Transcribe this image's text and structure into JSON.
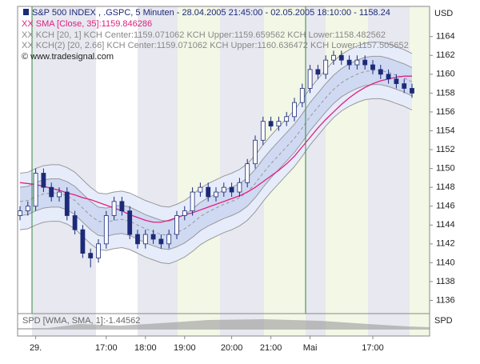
{
  "chart_data": {
    "type": "candlestick",
    "title": "S&P 500 INDEX , .GSPC, 5 Minuten - 28.04.2005 21:45:00 - 02.05.2005 18:10:00 - 1158.24",
    "copyright": "© www.tradesignal.com",
    "y_unit": "USD",
    "categories": [
      null,
      null,
      "29.",
      null,
      null,
      null,
      null,
      null,
      null,
      null,
      null,
      "17:00",
      null,
      null,
      null,
      null,
      "18:00",
      null,
      null,
      null,
      null,
      "19:00",
      null,
      null,
      null,
      null,
      null,
      "20:00",
      null,
      null,
      null,
      null,
      "21:00",
      null,
      null,
      null,
      null,
      "Mai",
      null,
      null,
      null,
      null,
      null,
      null,
      null,
      "17:00",
      null,
      null,
      null,
      null,
      null
    ],
    "open": [
      1145,
      1145.5,
      1146,
      1149.5,
      1148,
      1147,
      1147.5,
      1145,
      1143.5,
      1141,
      1140.5,
      1142,
      1145,
      1146.5,
      1145.5,
      1143,
      1142,
      1143,
      1142.5,
      1142,
      1143,
      1145,
      1145.5,
      1147.5,
      1148,
      1147,
      1147.5,
      1148,
      1147.5,
      1148.5,
      1150.5,
      1153,
      1155,
      1154.5,
      1155,
      1155.5,
      1157,
      1158.5,
      1160.5,
      1160,
      1161.5,
      1162,
      1161.5,
      1161,
      1161.5,
      1161,
      1160.5,
      1160,
      1159.5,
      1159,
      1158.5
    ],
    "high": [
      1146,
      1146.5,
      1150,
      1150,
      1148.5,
      1148,
      1148,
      1145.5,
      1144,
      1141.5,
      1142.5,
      1145.5,
      1147,
      1147,
      1146,
      1143.5,
      1143.5,
      1143.5,
      1143,
      1143.5,
      1145.5,
      1146,
      1148,
      1148.5,
      1148.5,
      1148,
      1148.5,
      1148.5,
      1149,
      1151,
      1153.5,
      1155.5,
      1155.5,
      1155.5,
      1156,
      1157.5,
      1159,
      1161,
      1161,
      1162,
      1162.5,
      1162.5,
      1162,
      1162,
      1162,
      1161.5,
      1161,
      1160.5,
      1160,
      1159.5,
      1159
    ],
    "low": [
      1144.5,
      1145,
      1145.5,
      1147.5,
      1146.5,
      1146.5,
      1144.5,
      1143,
      1140.5,
      1139.5,
      1140,
      1141.5,
      1144.5,
      1145,
      1142.5,
      1141.5,
      1141.5,
      1142,
      1141.5,
      1141.5,
      1142.5,
      1144.5,
      1145,
      1147,
      1146.5,
      1146.5,
      1147,
      1147,
      1147,
      1148,
      1150,
      1152.5,
      1154,
      1154,
      1154.5,
      1155,
      1156.5,
      1158,
      1159.5,
      1159.5,
      1161,
      1161,
      1160.5,
      1160.5,
      1160.5,
      1160,
      1159.5,
      1159,
      1158.5,
      1158,
      1157.5
    ],
    "close": [
      1145.5,
      1146,
      1149.5,
      1148,
      1147,
      1147.5,
      1145,
      1143.5,
      1141,
      1140.5,
      1142,
      1145,
      1146.5,
      1145.5,
      1143,
      1142,
      1143,
      1142.5,
      1142,
      1143,
      1145,
      1145.5,
      1147.5,
      1148,
      1147,
      1147.5,
      1148,
      1147.5,
      1148.5,
      1150.5,
      1153,
      1155,
      1154.5,
      1155,
      1155.5,
      1157,
      1158.5,
      1160.5,
      1160,
      1161.5,
      1162,
      1161.5,
      1161,
      1161.5,
      1161,
      1160.5,
      1160,
      1159.5,
      1159,
      1158.5,
      1158
    ],
    "up_color": "#ffffff",
    "down_color": "#1c2a78",
    "sma": {
      "name": "XX SMA [Close, 35]:1159.846286",
      "color": "#e0207f",
      "values": [
        1148.5,
        1148.4,
        1148.3,
        1148.1,
        1147.9,
        1147.7,
        1147.4,
        1147.2,
        1146.9,
        1146.7,
        1146.4,
        1146.1,
        1145.8,
        1145.5,
        1145.1,
        1144.8,
        1144.5,
        1144.3,
        1144.3,
        1144.5,
        1144.8,
        1145.1,
        1145.3,
        1145.6,
        1145.9,
        1146.2,
        1146.5,
        1146.8,
        1147.1,
        1147.5,
        1148,
        1148.6,
        1149.2,
        1149.8,
        1150.5,
        1151.3,
        1152.3,
        1153.3,
        1154.3,
        1155.2,
        1156,
        1156.8,
        1157.5,
        1158.1,
        1158.6,
        1159,
        1159.3,
        1159.5,
        1159.7,
        1159.8,
        1159.8
      ]
    },
    "kch1": {
      "name": "XX KCH [20, 1] KCH Center:1159.071062 KCH Upper:1159.659562 KCH Lower:1158.482562",
      "color": "#999999",
      "fill": "#cfd9f2",
      "center": [
        1146.5,
        1146.6,
        1147,
        1147.3,
        1147.4,
        1147.4,
        1147.1,
        1146.6,
        1145.8,
        1145,
        1144.4,
        1144.3,
        1144.5,
        1144.6,
        1144.4,
        1144,
        1143.6,
        1143.3,
        1143,
        1142.9,
        1143.2,
        1143.6,
        1144.2,
        1144.9,
        1145.4,
        1145.8,
        1146.2,
        1146.5,
        1146.9,
        1147.5,
        1148.4,
        1149.5,
        1150.5,
        1151.4,
        1152.3,
        1153.2,
        1154.3,
        1155.5,
        1156.5,
        1157.5,
        1158.4,
        1159.1,
        1159.6,
        1160,
        1160.3,
        1160.4,
        1160.4,
        1160.2,
        1159.9,
        1159.6,
        1159.2
      ],
      "upper": [
        1148,
        1148.1,
        1148.5,
        1148.8,
        1148.9,
        1148.9,
        1148.6,
        1148.1,
        1147.3,
        1146.5,
        1145.9,
        1145.8,
        1146,
        1146.1,
        1145.9,
        1145.5,
        1145.1,
        1144.8,
        1144.5,
        1144.4,
        1144.7,
        1145.1,
        1145.7,
        1146.4,
        1146.9,
        1147.3,
        1147.7,
        1148,
        1148.4,
        1149,
        1149.9,
        1151,
        1152,
        1152.9,
        1153.8,
        1154.7,
        1155.8,
        1157,
        1158,
        1159,
        1159.9,
        1160.6,
        1161.1,
        1161.5,
        1161.8,
        1161.9,
        1161.9,
        1161.7,
        1161.4,
        1161.1,
        1160.7
      ],
      "lower": [
        1145,
        1145.1,
        1145.5,
        1145.8,
        1145.9,
        1145.9,
        1145.6,
        1145.1,
        1144.3,
        1143.5,
        1142.9,
        1142.8,
        1143,
        1143.1,
        1142.9,
        1142.5,
        1142.1,
        1141.8,
        1141.5,
        1141.4,
        1141.7,
        1142.1,
        1142.7,
        1143.4,
        1143.9,
        1144.3,
        1144.7,
        1145,
        1145.4,
        1146,
        1146.9,
        1148,
        1149,
        1149.9,
        1150.8,
        1151.7,
        1152.8,
        1154,
        1155,
        1156,
        1156.9,
        1157.6,
        1158.1,
        1158.5,
        1158.8,
        1158.9,
        1158.9,
        1158.7,
        1158.4,
        1158.1,
        1157.7
      ]
    },
    "kch2": {
      "name": "XX KCH(2) [20, 2.66] KCH Center:1159.071062 KCH Upper:1160.636472 KCH Lower:1157.505652",
      "color": "#999999",
      "fill": "#e6ecfa",
      "upper": [
        1149.5,
        1149.6,
        1150,
        1150.3,
        1150.4,
        1150.4,
        1150.1,
        1149.6,
        1148.8,
        1148,
        1147.4,
        1147.3,
        1147.5,
        1147.6,
        1147.4,
        1147,
        1146.6,
        1146.3,
        1146,
        1145.9,
        1146.2,
        1146.6,
        1147.2,
        1147.9,
        1148.4,
        1148.8,
        1149.2,
        1149.5,
        1149.9,
        1150.5,
        1151.4,
        1152.5,
        1153.5,
        1154.4,
        1155.3,
        1156.2,
        1157.3,
        1158.5,
        1159.5,
        1160.5,
        1161.4,
        1162.1,
        1162.6,
        1163,
        1163.3,
        1163.4,
        1163.4,
        1163.2,
        1162.9,
        1162.6,
        1162.2
      ],
      "lower": [
        1143.5,
        1143.6,
        1144,
        1144.3,
        1144.4,
        1144.4,
        1144.1,
        1143.6,
        1142.8,
        1142,
        1141.4,
        1141.3,
        1141.5,
        1141.6,
        1141.4,
        1141,
        1140.6,
        1140.3,
        1140,
        1139.9,
        1140.2,
        1140.6,
        1141.2,
        1141.9,
        1142.4,
        1142.8,
        1143.2,
        1143.5,
        1143.9,
        1144.5,
        1145.4,
        1146.5,
        1147.5,
        1148.4,
        1149.3,
        1150.2,
        1151.3,
        1152.5,
        1153.5,
        1154.5,
        1155.4,
        1156.1,
        1156.6,
        1157,
        1157.3,
        1157.4,
        1157.4,
        1157.2,
        1156.9,
        1156.6,
        1156.2
      ]
    },
    "ylim": [
      1134.6,
      1167.2
    ],
    "yticks": [
      1136,
      1138,
      1140,
      1142,
      1144,
      1146,
      1148,
      1150,
      1152,
      1154,
      1156,
      1158,
      1160,
      1162,
      1164
    ],
    "grid": true,
    "spd": {
      "label": "SPD [WMA, SMA, 1]:-1.44562",
      "axis_label": "SPD"
    }
  }
}
